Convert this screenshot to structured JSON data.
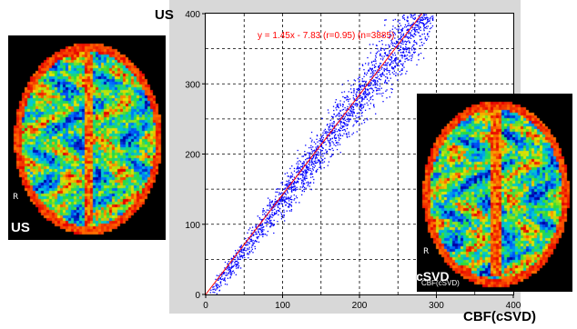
{
  "labels": {
    "us_axis": "US",
    "us_brain": "US",
    "cbf_axis": "CBF(cSVD)",
    "cbf_brain": "cSVD",
    "cbf_brain_small": "CBF(cSVD)",
    "r_left": "R",
    "r_right": "R"
  },
  "chart_data": {
    "type": "scatter",
    "title": "",
    "xlabel": "CBF(cSVD)",
    "ylabel": "US",
    "xlim": [
      0,
      400
    ],
    "ylim": [
      0,
      400
    ],
    "x_ticks": [
      0,
      100,
      200,
      300,
      400
    ],
    "y_ticks": [
      0,
      100,
      200,
      300,
      400
    ],
    "grid": true,
    "point_color": "#0000ff",
    "line_color": "#ff0000",
    "annotation": "y = 1.45x - 7.83 (r=0.95) (n=3885)",
    "regression": {
      "slope": 1.45,
      "intercept": -7.83,
      "r": 0.95,
      "n": 3885
    }
  }
}
